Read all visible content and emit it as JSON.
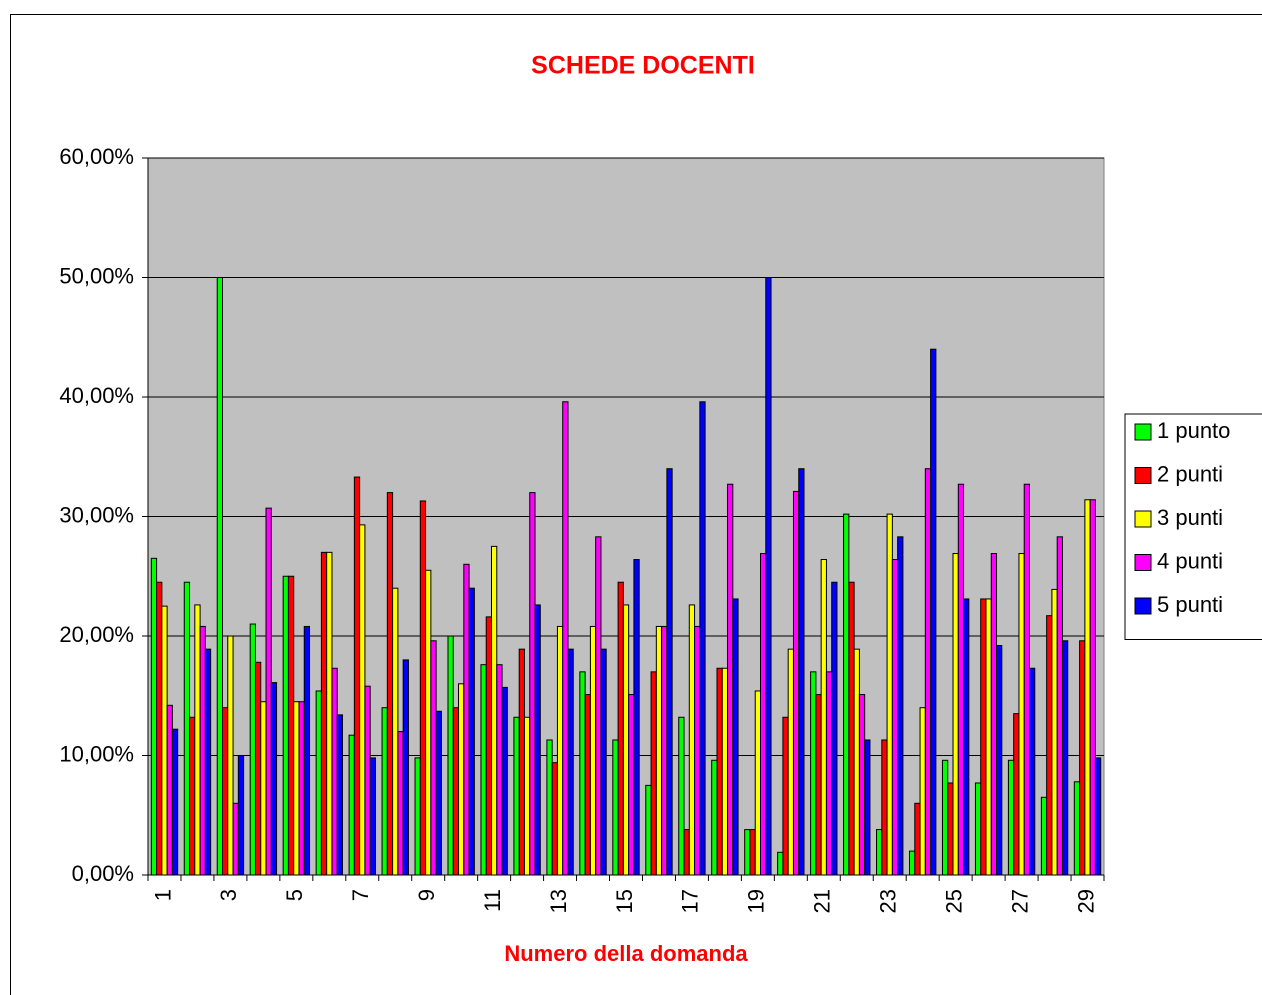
{
  "chart_data": {
    "type": "bar",
    "title": "SCHEDE DOCENTI",
    "x_label": "Numero della domanda",
    "categories": [
      "1",
      null,
      "3",
      null,
      "5",
      null,
      "7",
      null,
      "9",
      null,
      "11",
      null,
      "13",
      null,
      "15",
      null,
      "17",
      null,
      "19",
      null,
      "21",
      null,
      "23",
      null,
      "25",
      null,
      "27",
      null,
      "29"
    ],
    "series": [
      {
        "name": "1 punto",
        "color": "#00ff00",
        "values": [
          26.5,
          24.5,
          50,
          21,
          25,
          15.4,
          11.7,
          14,
          9.8,
          20,
          17.6,
          13.2,
          11.3,
          17,
          11.3,
          7.5,
          13.2,
          9.6,
          3.8,
          1.9,
          17,
          30.2,
          3.8,
          2,
          9.6,
          7.7,
          9.6,
          6.5,
          7.8
        ]
      },
      {
        "name": "2 punti",
        "color": "#ff0000",
        "values": [
          24.5,
          13.2,
          14,
          17.8,
          25,
          27,
          33.3,
          32,
          31.3,
          14,
          21.6,
          18.9,
          9.4,
          15.1,
          24.5,
          17,
          3.8,
          17.3,
          3.8,
          13.2,
          15.1,
          24.5,
          11.3,
          6,
          7.7,
          23.1,
          13.5,
          21.7,
          19.6
        ]
      },
      {
        "name": "3 punti",
        "color": "#ffff00",
        "values": [
          22.5,
          22.6,
          20,
          14.5,
          14.5,
          27,
          29.3,
          24,
          25.5,
          16,
          27.5,
          13.2,
          20.8,
          20.8,
          22.6,
          20.8,
          22.6,
          17.3,
          15.4,
          18.9,
          26.4,
          18.9,
          30.2,
          14,
          26.9,
          23.1,
          26.9,
          23.9,
          31.4
        ]
      },
      {
        "name": "4 punti",
        "color": "#ff00ff",
        "values": [
          14.2,
          20.8,
          6,
          30.7,
          14.5,
          17.3,
          15.8,
          12,
          19.6,
          26,
          17.6,
          32,
          39.6,
          28.3,
          15.1,
          20.8,
          20.8,
          32.7,
          26.9,
          32.1,
          17,
          15.1,
          26.4,
          34,
          32.7,
          26.9,
          32.7,
          28.3,
          31.4
        ]
      },
      {
        "name": "5 punti",
        "color": "#0000ff",
        "values": [
          12.2,
          18.9,
          10,
          16.1,
          20.8,
          13.4,
          9.8,
          18,
          13.7,
          24,
          15.7,
          22.6,
          18.9,
          18.9,
          26.4,
          34,
          39.6,
          23.1,
          50,
          34,
          24.5,
          11.3,
          28.3,
          44,
          23.1,
          19.2,
          17.3,
          19.6,
          9.8
        ]
      }
    ],
    "ylim": [
      0,
      60
    ],
    "yticks": [
      {
        "value": 0,
        "label": "0,00%"
      },
      {
        "value": 10,
        "label": "10,00%"
      },
      {
        "value": 20,
        "label": "20,00%"
      },
      {
        "value": 30,
        "label": "30,00%"
      },
      {
        "value": 40,
        "label": "40,00%"
      },
      {
        "value": 50,
        "label": "50,00%"
      },
      {
        "value": 60,
        "label": "60,00%"
      }
    ],
    "grid": true,
    "legend": "right",
    "plot_background": "#c0c0c0"
  }
}
